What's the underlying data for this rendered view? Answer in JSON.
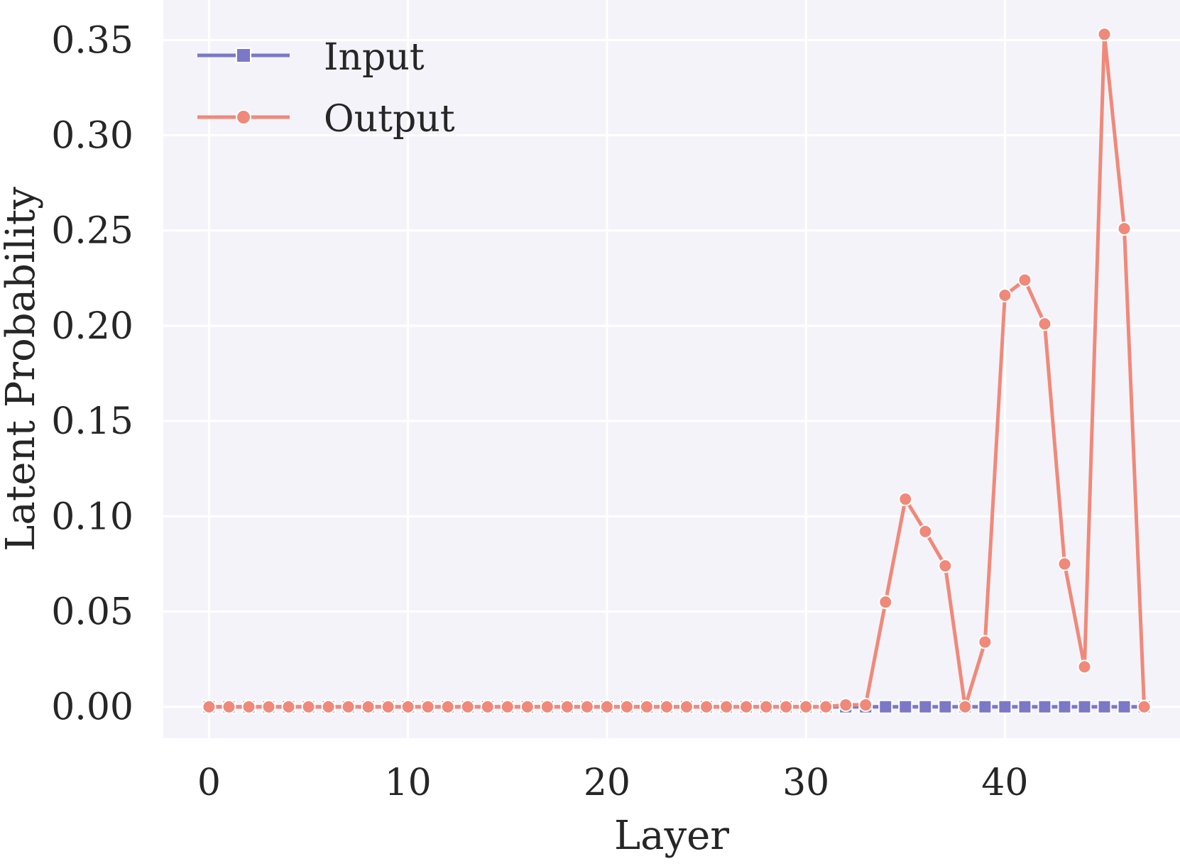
{
  "chart_data": {
    "type": "line",
    "xlabel": "Layer",
    "ylabel": "Latent Probability",
    "xlim": [
      -2.3,
      48.8
    ],
    "ylim": [
      -0.0165,
      0.371
    ],
    "xticks": [
      0,
      10,
      20,
      30,
      40
    ],
    "xtick_labels": [
      "0",
      "10",
      "20",
      "30",
      "40"
    ],
    "yticks": [
      0.0,
      0.05,
      0.1,
      0.15,
      0.2,
      0.25,
      0.3,
      0.35
    ],
    "ytick_labels": [
      "0.00",
      "0.05",
      "0.10",
      "0.15",
      "0.20",
      "0.25",
      "0.30",
      "0.35"
    ],
    "grid": true,
    "legend_position": "top-left",
    "background_color": "#f4f3f9",
    "grid_color": "#ffffff",
    "x": [
      0,
      1,
      2,
      3,
      4,
      5,
      6,
      7,
      8,
      9,
      10,
      11,
      12,
      13,
      14,
      15,
      16,
      17,
      18,
      19,
      20,
      21,
      22,
      23,
      24,
      25,
      26,
      27,
      28,
      29,
      30,
      31,
      32,
      33,
      34,
      35,
      36,
      37,
      38,
      39,
      40,
      41,
      42,
      43,
      44,
      45,
      46,
      47
    ],
    "series": [
      {
        "name": "Input",
        "color": "#7b78c8",
        "marker": "square",
        "values": [
          0,
          0,
          0,
          0,
          0,
          0,
          0,
          0,
          0,
          0,
          0,
          0,
          0,
          0,
          0,
          0,
          0,
          0,
          0,
          0,
          0,
          0,
          0,
          0,
          0,
          0,
          0,
          0,
          0,
          0,
          0,
          0,
          0,
          0,
          0,
          0,
          0,
          0,
          0,
          0,
          0,
          0,
          0,
          0,
          0,
          0,
          0,
          0
        ]
      },
      {
        "name": "Output",
        "color": "#f0897a",
        "marker": "circle",
        "values": [
          0,
          0,
          0,
          0,
          0,
          0,
          0,
          0,
          0,
          0,
          0,
          0,
          0,
          0,
          0,
          0,
          0,
          0,
          0,
          0,
          0,
          0,
          0,
          0,
          0,
          0,
          0,
          0,
          0,
          0,
          0,
          0,
          0.001,
          0.001,
          0.055,
          0.109,
          0.092,
          0.074,
          0,
          0.034,
          0.216,
          0.224,
          0.201,
          0.075,
          0.021,
          0.353,
          0.251,
          0
        ]
      }
    ]
  }
}
